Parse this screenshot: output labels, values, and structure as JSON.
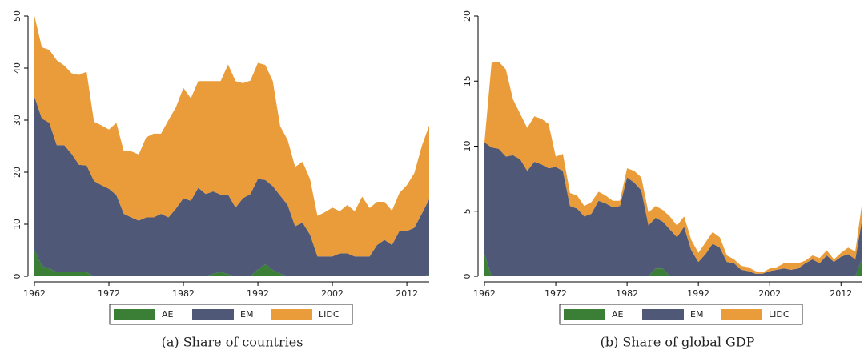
{
  "chart_data": [
    {
      "type": "stacked-area",
      "caption": "(a) Share of countries",
      "x": [
        1962,
        1963,
        1964,
        1965,
        1966,
        1967,
        1968,
        1969,
        1970,
        1971,
        1972,
        1973,
        1974,
        1975,
        1976,
        1977,
        1978,
        1979,
        1980,
        1981,
        1982,
        1983,
        1984,
        1985,
        1986,
        1987,
        1988,
        1989,
        1990,
        1991,
        1992,
        1993,
        1994,
        1995,
        1996,
        1997,
        1998,
        1999,
        2000,
        2001,
        2002,
        2003,
        2004,
        2005,
        2006,
        2007,
        2008,
        2009,
        2010,
        2011,
        2012,
        2013,
        2014,
        2015
      ],
      "xlim": [
        1962,
        2015
      ],
      "xticks": [
        1962,
        1972,
        1982,
        1992,
        2002,
        2012
      ],
      "ylim": [
        0,
        50
      ],
      "yticks": [
        0,
        10,
        20,
        30,
        40,
        50
      ],
      "series": [
        {
          "name": "AE",
          "color": "#3a7f35",
          "values": [
            5,
            2,
            1.5,
            0.8,
            0.8,
            0.8,
            0.8,
            0.8,
            0,
            0,
            0,
            0,
            0,
            0,
            0,
            0,
            0,
            0,
            0,
            0,
            0,
            0,
            0,
            0,
            0.5,
            0.8,
            0.4,
            0,
            0,
            0,
            1.3,
            2.3,
            1.2,
            0.5,
            0,
            0,
            0,
            0,
            0,
            0,
            0,
            0,
            0,
            0,
            0,
            0,
            0,
            0,
            0,
            0,
            0,
            0,
            0,
            0.3
          ]
        },
        {
          "name": "EM",
          "color": "#4f5876",
          "values": [
            29.5,
            28.3,
            28,
            24.4,
            24.4,
            22.7,
            20.6,
            20.5,
            18.3,
            17.5,
            16.8,
            15.6,
            12,
            11.3,
            10.7,
            11.3,
            11.3,
            12,
            11.3,
            13,
            15,
            14.5,
            17,
            15.8,
            15.8,
            14.9,
            15.3,
            13.2,
            15,
            15.8,
            17.4,
            16.2,
            16.1,
            15,
            13.7,
            9.6,
            10.3,
            8,
            3.8,
            3.8,
            3.8,
            4.4,
            4.4,
            3.8,
            3.8,
            3.8,
            6,
            7,
            6,
            8.7,
            8.7,
            9.3,
            12,
            14.5
          ]
        },
        {
          "name": "LIDC",
          "color": "#ea9c3a",
          "values": [
            15.5,
            13.7,
            14,
            16.3,
            15.3,
            15.5,
            17.3,
            18,
            11.4,
            11.5,
            11.4,
            13.9,
            12,
            12.7,
            12.7,
            15.4,
            16.1,
            15.4,
            18.7,
            19.5,
            21.2,
            19.7,
            20.5,
            21.7,
            21.2,
            21.8,
            25,
            24.3,
            22.1,
            21.8,
            22.3,
            22.1,
            20.2,
            13.3,
            12.5,
            11.4,
            11.7,
            10.7,
            7.8,
            8.5,
            9.4,
            8.1,
            9.3,
            8.7,
            11.5,
            9.3,
            8.3,
            7.3,
            6.6,
            7.3,
            8.8,
            10.5,
            13,
            14.2
          ]
        }
      ]
    },
    {
      "type": "stacked-area",
      "caption": "(b) Share of global GDP",
      "x": [
        1962,
        1963,
        1964,
        1965,
        1966,
        1967,
        1968,
        1969,
        1970,
        1971,
        1972,
        1973,
        1974,
        1975,
        1976,
        1977,
        1978,
        1979,
        1980,
        1981,
        1982,
        1983,
        1984,
        1985,
        1986,
        1987,
        1988,
        1989,
        1990,
        1991,
        1992,
        1993,
        1994,
        1995,
        1996,
        1997,
        1998,
        1999,
        2000,
        2001,
        2002,
        2003,
        2004,
        2005,
        2006,
        2007,
        2008,
        2009,
        2010,
        2011,
        2012,
        2013,
        2014,
        2015
      ],
      "xlim": [
        1962,
        2015
      ],
      "xticks": [
        1962,
        1972,
        1982,
        1992,
        2002,
        2012
      ],
      "ylim": [
        0,
        20
      ],
      "yticks": [
        0,
        5,
        10,
        15,
        20
      ],
      "series": [
        {
          "name": "AE",
          "color": "#3a7f35",
          "values": [
            1.7,
            0,
            0,
            0,
            0,
            0,
            0,
            0,
            0,
            0,
            0,
            0,
            0,
            0,
            0,
            0,
            0,
            0,
            0,
            0,
            0,
            0,
            0,
            0,
            0.6,
            0.6,
            0,
            0,
            0,
            0,
            0,
            0,
            0,
            0,
            0,
            0,
            0,
            0,
            0,
            0,
            0,
            0,
            0,
            0,
            0,
            0,
            0,
            0,
            0,
            0,
            0,
            0,
            0,
            1.4
          ]
        },
        {
          "name": "EM",
          "color": "#4f5876",
          "values": [
            8.6,
            9.9,
            9.8,
            9.2,
            9.3,
            9,
            8.1,
            8.8,
            8.6,
            8.3,
            8.4,
            8.1,
            5.4,
            5.2,
            4.6,
            4.8,
            5.8,
            5.6,
            5.3,
            5.4,
            7.6,
            7.2,
            6.6,
            3.9,
            3.9,
            3.6,
            3.6,
            3,
            3.8,
            2,
            1.1,
            1.7,
            2.5,
            2.2,
            1.1,
            1,
            0.5,
            0.4,
            0.2,
            0.2,
            0.4,
            0.5,
            0.6,
            0.5,
            0.6,
            1,
            1.3,
            1,
            1.6,
            1.1,
            1.5,
            1.7,
            1.3,
            3.1
          ]
        },
        {
          "name": "LIDC",
          "color": "#ea9c3a",
          "values": [
            0,
            6.5,
            6.7,
            6.7,
            4.3,
            3.5,
            3.3,
            3.5,
            3.5,
            3.4,
            0.8,
            1.3,
            1,
            1,
            0.8,
            0.9,
            0.7,
            0.6,
            0.5,
            0.4,
            0.7,
            0.9,
            1,
            1,
            0.9,
            0.9,
            1,
            0.9,
            0.8,
            0.8,
            0.7,
            0.9,
            0.9,
            0.8,
            0.5,
            0.3,
            0.3,
            0.3,
            0.2,
            0.1,
            0.2,
            0.2,
            0.4,
            0.5,
            0.4,
            0.2,
            0.3,
            0.4,
            0.4,
            0.2,
            0.3,
            0.5,
            0.6,
            1.3
          ]
        }
      ]
    }
  ]
}
